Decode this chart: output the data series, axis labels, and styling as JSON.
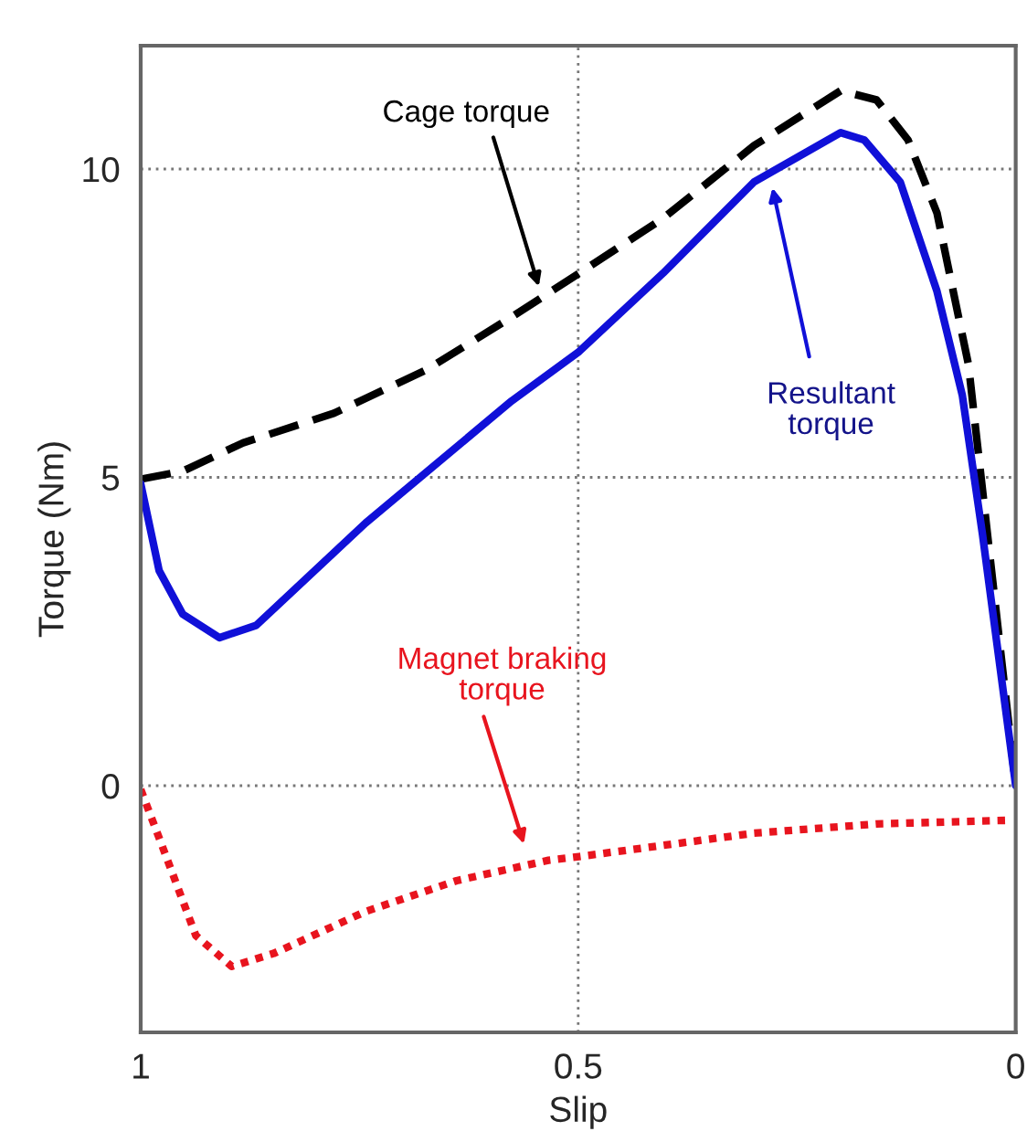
{
  "chart_data": {
    "type": "line",
    "xlabel": "Slip",
    "ylabel": "Torque (Nm)",
    "xlim": [
      1,
      0
    ],
    "xticks": [
      1,
      0.5,
      0
    ],
    "ylim": [
      -4,
      12
    ],
    "yticks": [
      0,
      5,
      10
    ],
    "grid": true,
    "marker": "none",
    "series": [
      {
        "color": "#000000",
        "line_style": "dashed",
        "x": [
          1,
          0.952,
          0.883,
          0.779,
          0.674,
          0.576,
          0.499,
          0.403,
          0.299,
          0.2,
          0.159,
          0.123,
          0.09,
          0.054,
          0.033,
          0
        ],
        "values": [
          4.97,
          5.1,
          5.56,
          6.04,
          6.74,
          7.6,
          8.31,
          9.2,
          10.38,
          11.27,
          11.12,
          10.47,
          9.29,
          6.83,
          4.17,
          0
        ]
      },
      {
        "color": "#1010d8",
        "line_style": "solid",
        "x": [
          1,
          0.979,
          0.952,
          0.91,
          0.868,
          0.743,
          0.576,
          0.499,
          0.403,
          0.299,
          0.2,
          0.173,
          0.132,
          0.09,
          0.061,
          0.038,
          0
        ],
        "values": [
          4.9,
          3.49,
          2.78,
          2.4,
          2.6,
          4.26,
          6.24,
          7.04,
          8.31,
          9.79,
          10.59,
          10.47,
          9.79,
          8.02,
          6.33,
          4.08,
          0
        ]
      },
      {
        "color": "#e8141e",
        "line_style": "dotted",
        "x": [
          1,
          0.973,
          0.937,
          0.896,
          0.848,
          0.743,
          0.639,
          0.534,
          0.499,
          0.299,
          0.159,
          0.006
        ],
        "values": [
          -0.06,
          -1.07,
          -2.43,
          -2.93,
          -2.72,
          -2.04,
          -1.54,
          -1.21,
          -1.15,
          -0.77,
          -0.62,
          -0.56
        ]
      }
    ],
    "annotations": [
      "Cage torque",
      "Resultant\ntorque",
      "Magnet braking\ntorque"
    ]
  }
}
